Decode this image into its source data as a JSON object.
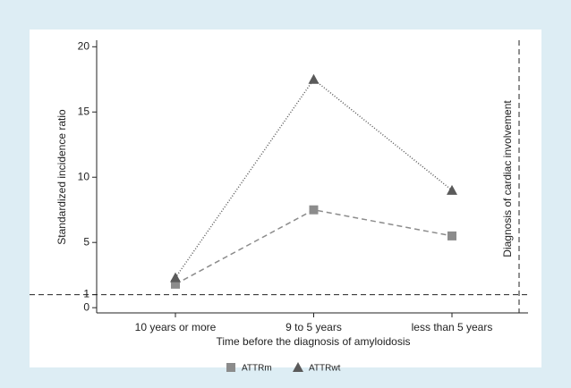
{
  "chart_data": {
    "type": "line",
    "categories": [
      "10 years or more",
      "9 to 5 years",
      "less than 5 years"
    ],
    "series": [
      {
        "name": "ATTRm",
        "color": "#8c8c8c",
        "marker": "square",
        "dash": "dashed",
        "values": [
          1.8,
          7.5,
          5.5
        ]
      },
      {
        "name": "ATTRwt",
        "color": "#5a5a5a",
        "marker": "triangle",
        "dash": "dotted",
        "values": [
          2.3,
          17.5,
          9.0
        ]
      }
    ],
    "ylim": [
      -0.4,
      20.5
    ],
    "yticks": [
      0,
      1,
      5,
      10,
      15,
      20
    ],
    "reference_line": 1,
    "ylabel": "Standardized incidence ratio",
    "xlabel": "Time before the diagnosis of amyloidosis",
    "annotation": "Diagnosis of cardiac involvement",
    "legend": "bottom"
  }
}
